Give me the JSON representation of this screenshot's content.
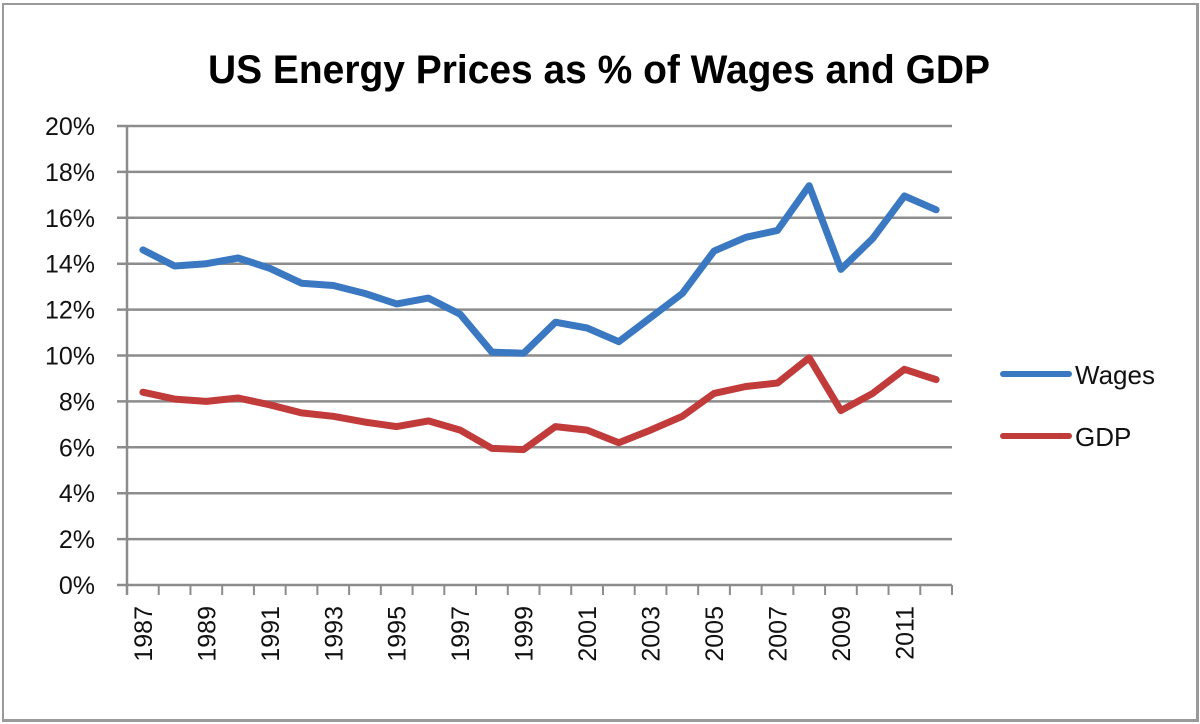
{
  "chart_data": {
    "type": "line",
    "title": "US Energy Prices as % of Wages and GDP",
    "xlabel": "",
    "ylabel": "",
    "x": [
      1987,
      1988,
      1989,
      1990,
      1991,
      1992,
      1993,
      1994,
      1995,
      1996,
      1997,
      1998,
      1999,
      2000,
      2001,
      2002,
      2003,
      2004,
      2005,
      2006,
      2007,
      2008,
      2009,
      2010,
      2011,
      2012
    ],
    "x_tick_labels": [
      "1987",
      "1989",
      "1991",
      "1993",
      "1995",
      "1997",
      "1999",
      "2001",
      "2003",
      "2005",
      "2007",
      "2009",
      "2011"
    ],
    "y_tick_values": [
      0,
      2,
      4,
      6,
      8,
      10,
      12,
      14,
      16,
      18,
      20
    ],
    "y_tick_labels": [
      "0%",
      "2%",
      "4%",
      "6%",
      "8%",
      "10%",
      "12%",
      "14%",
      "16%",
      "18%",
      "20%"
    ],
    "ylim": [
      0,
      20
    ],
    "y_unit": "%",
    "grid": true,
    "legend_position": "right",
    "series": [
      {
        "name": "Wages",
        "color": "#3a78c2",
        "values": [
          14.6,
          13.9,
          14.0,
          14.25,
          13.8,
          13.15,
          13.05,
          12.7,
          12.25,
          12.5,
          11.8,
          10.15,
          10.1,
          11.45,
          11.2,
          10.6,
          11.65,
          12.7,
          14.55,
          15.15,
          15.45,
          17.4,
          13.75,
          15.1,
          16.95,
          16.35
        ]
      },
      {
        "name": "GDP",
        "color": "#c23b3b",
        "values": [
          8.4,
          8.1,
          8.0,
          8.15,
          7.85,
          7.5,
          7.35,
          7.1,
          6.9,
          7.15,
          6.75,
          5.95,
          5.9,
          6.9,
          6.75,
          6.2,
          6.75,
          7.35,
          8.35,
          8.65,
          8.8,
          9.9,
          7.6,
          8.35,
          9.4,
          8.95
        ]
      }
    ]
  }
}
